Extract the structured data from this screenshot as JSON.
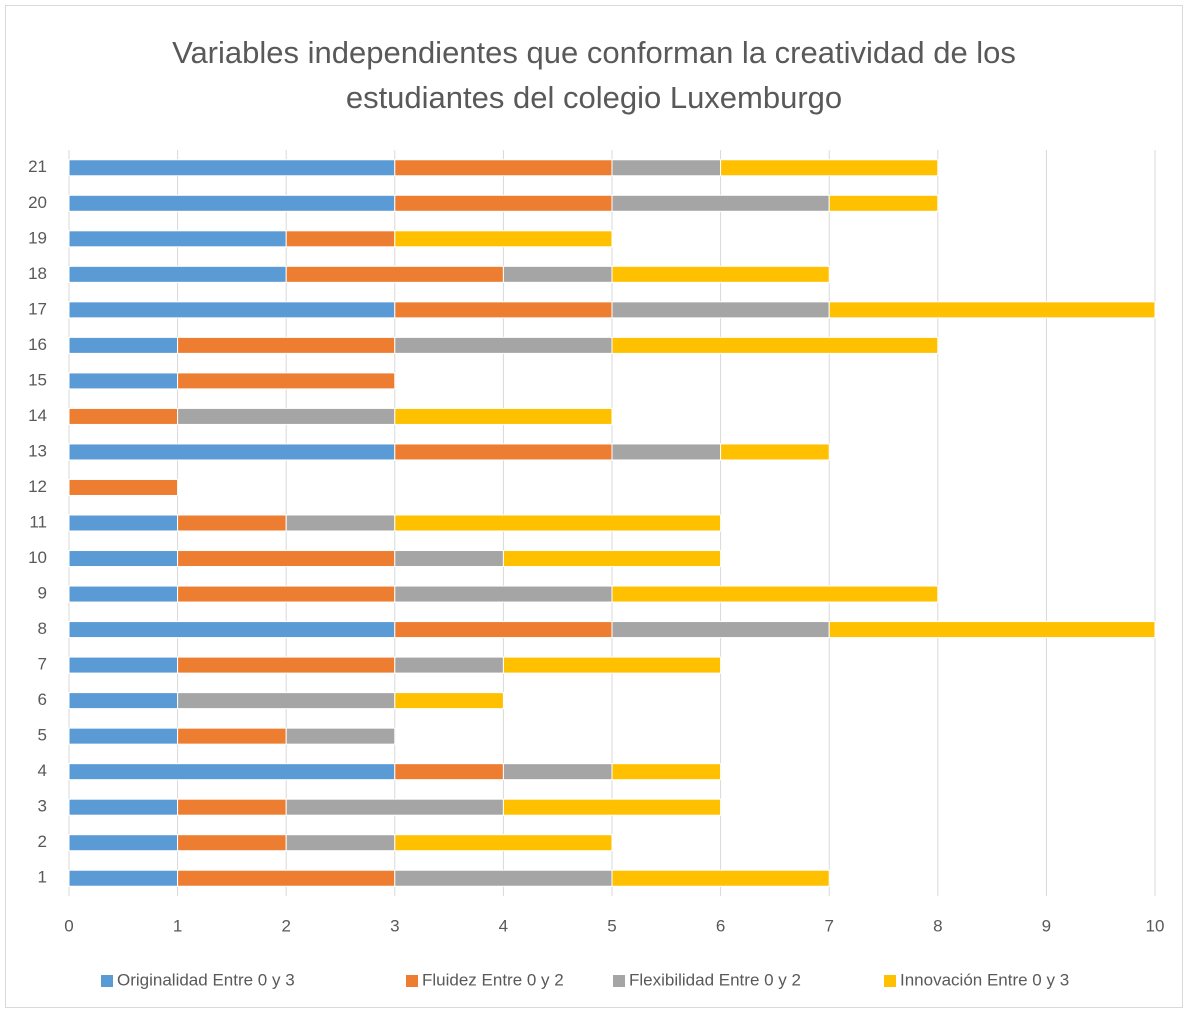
{
  "chart_data": {
    "type": "stacked_barh",
    "title": "Variables independientes que conforman la creatividad de los estudiantes del colegio Luxemburgo",
    "categories": [
      "1",
      "2",
      "3",
      "4",
      "5",
      "6",
      "7",
      "8",
      "9",
      "10",
      "11",
      "12",
      "13",
      "14",
      "15",
      "16",
      "17",
      "18",
      "19",
      "20",
      "21"
    ],
    "series": [
      {
        "name": "Originalidad Entre 0 y 3",
        "color": "#5b9bd5",
        "values": [
          1,
          1,
          1,
          3,
          1,
          1,
          1,
          3,
          1,
          1,
          1,
          0,
          3,
          0,
          1,
          1,
          3,
          2,
          2,
          3,
          3
        ]
      },
      {
        "name": "Fluidez Entre 0 y 2",
        "color": "#ed7d31",
        "values": [
          2,
          1,
          1,
          1,
          1,
          0,
          2,
          2,
          2,
          2,
          1,
          1,
          2,
          1,
          2,
          2,
          2,
          2,
          1,
          2,
          2
        ]
      },
      {
        "name": "Flexibilidad Entre 0 y 2",
        "color": "#a5a5a5",
        "values": [
          2,
          1,
          2,
          1,
          1,
          2,
          1,
          2,
          2,
          1,
          1,
          0,
          1,
          2,
          0,
          2,
          2,
          1,
          0,
          2,
          1
        ]
      },
      {
        "name": "Innovación Entre 0 y 3",
        "color": "#ffc000",
        "values": [
          2,
          2,
          2,
          1,
          0,
          1,
          2,
          3,
          3,
          2,
          3,
          0,
          1,
          2,
          0,
          3,
          3,
          2,
          2,
          1,
          2
        ]
      }
    ],
    "xlim": [
      0,
      10
    ],
    "xticks": [
      0,
      1,
      2,
      3,
      4,
      5,
      6,
      7,
      8,
      9,
      10
    ],
    "grid": true,
    "legend": "bottom"
  }
}
